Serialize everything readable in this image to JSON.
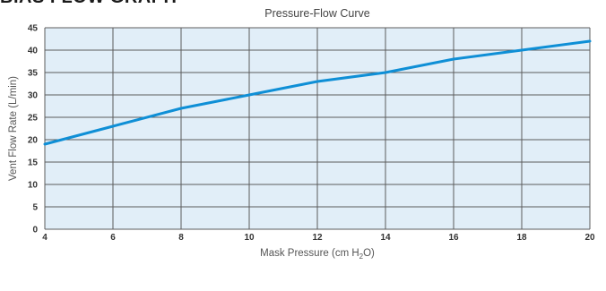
{
  "page": {
    "heading": "BIAS FLOW GRAPH"
  },
  "chart_data": {
    "type": "line",
    "title": "Pressure-Flow Curve",
    "xlabel": {
      "main": "Mask Pressure (cm H",
      "sub": "2",
      "end": "O)"
    },
    "ylabel": "Vent Flow Rate (L/min)",
    "xlim": [
      4,
      20
    ],
    "ylim": [
      0,
      45
    ],
    "x_ticks": [
      4,
      6,
      8,
      10,
      12,
      14,
      16,
      18,
      20
    ],
    "y_ticks": [
      0,
      5,
      10,
      15,
      20,
      25,
      30,
      35,
      40,
      45
    ],
    "grid": true,
    "series": [
      {
        "x": [
          4,
          6,
          8,
          10,
          12,
          14,
          16,
          18,
          20
        ],
        "y": [
          19,
          23,
          27,
          30,
          33,
          35,
          38,
          40,
          42
        ]
      }
    ],
    "colors": {
      "plot_background": "#e1eef8",
      "grid": "#5c5c5c",
      "line": "#0f8fd6"
    }
  }
}
